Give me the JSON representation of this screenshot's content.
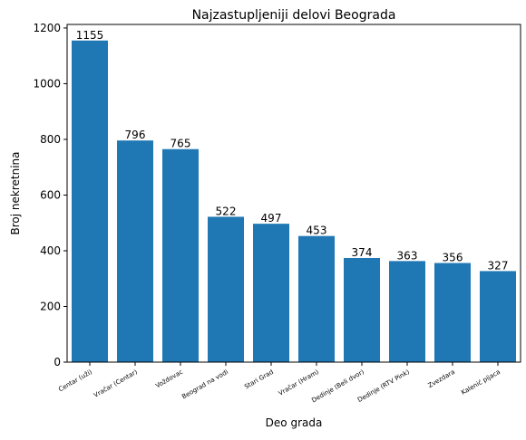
{
  "chart_data": {
    "type": "bar",
    "title": "Najzastupljeniji delovi Beograda",
    "xlabel": "Deo grada",
    "ylabel": "Broj nekretnina",
    "categories": [
      "Centar (uži)",
      "Vračar (Centar)",
      "Voždovac",
      "Beograd na vodi",
      "Stari Grad",
      "Vračar (Hram)",
      "Dedinje (Beli dvor)",
      "Dedinje (RTV Pink)",
      "Zvezdara",
      "Kalenić pijaca"
    ],
    "values": [
      1155,
      796,
      765,
      522,
      497,
      453,
      374,
      363,
      356,
      327
    ],
    "data_labels": [
      "1155",
      "796",
      "765",
      "522",
      "497",
      "453",
      "374",
      "363",
      "356",
      "327"
    ],
    "ylim": [
      0,
      1212.75
    ],
    "yticks": [
      0,
      200,
      400,
      600,
      800,
      1000,
      1200
    ],
    "ytick_labels": [
      "0",
      "200",
      "400",
      "600",
      "800",
      "1000",
      "1200"
    ],
    "bar_color": "#1f77b4",
    "grid": false,
    "legend": "none"
  }
}
